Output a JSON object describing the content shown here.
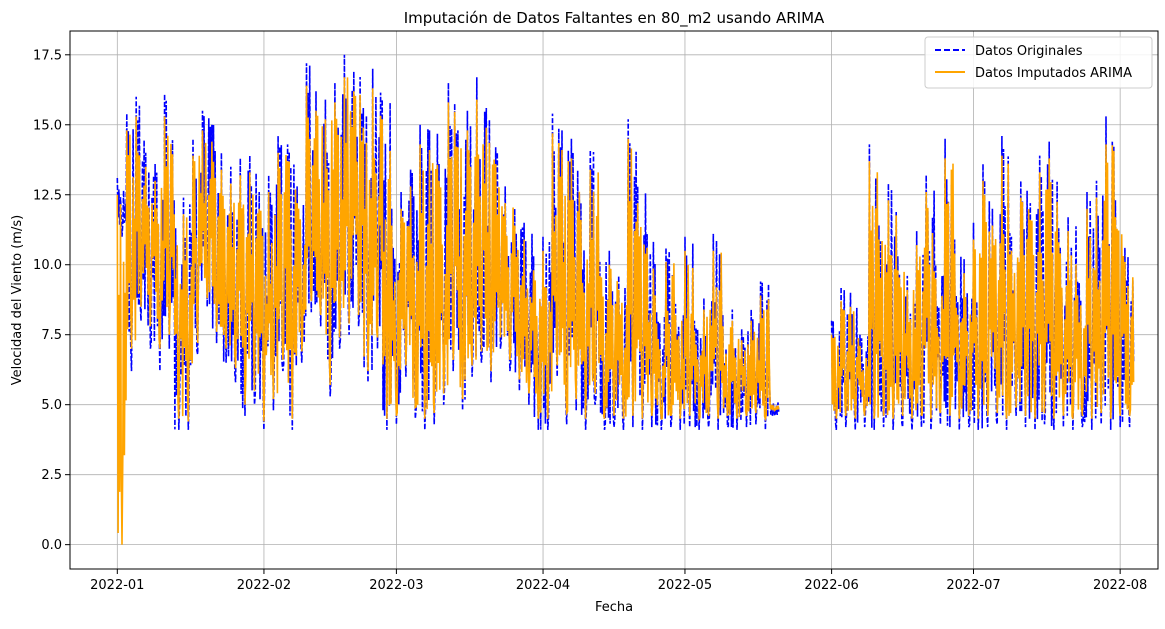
{
  "chart_data": {
    "type": "line",
    "title": "Imputación de Datos Faltantes en 80_m2 usando ARIMA",
    "xlabel": "Fecha",
    "ylabel": "Velocidad del Viento (m/s)",
    "x_range": [
      "2021-12-22",
      "2022-08-09"
    ],
    "xlim": [
      "2021-12-22",
      "2022-08-09"
    ],
    "ylim": [
      -0.87,
      18.35
    ],
    "x_ticks": [
      "2022-01-01",
      "2022-02-01",
      "2022-03-01",
      "2022-04-01",
      "2022-05-01",
      "2022-06-01",
      "2022-07-01",
      "2022-08-01"
    ],
    "x_tick_labels": [
      "2022-01",
      "2022-02",
      "2022-03",
      "2022-04",
      "2022-05",
      "2022-06",
      "2022-07",
      "2022-08"
    ],
    "y_ticks": [
      0.0,
      2.5,
      5.0,
      7.5,
      10.0,
      12.5,
      15.0,
      17.5
    ],
    "y_tick_labels": [
      "0.0",
      "2.5",
      "5.0",
      "7.5",
      "10.0",
      "12.5",
      "15.0",
      "17.5"
    ],
    "grid": true,
    "legend_position": "top-right",
    "series": [
      {
        "name": "Datos Originales",
        "color": "#0000ff",
        "style": "dashed",
        "x": [
          "2022-01-01",
          "2022-01-03",
          "2022-01-05",
          "2022-01-07",
          "2022-01-09",
          "2022-01-11",
          "2022-01-13",
          "2022-01-15",
          "2022-01-17",
          "2022-01-19",
          "2022-01-21",
          "2022-01-23",
          "2022-01-25",
          "2022-01-27",
          "2022-01-29",
          "2022-01-31",
          "2022-02-02",
          "2022-02-04",
          "2022-02-06",
          "2022-02-08",
          "2022-02-10",
          "2022-02-12",
          "2022-02-14",
          "2022-02-16",
          "2022-02-18",
          "2022-02-20",
          "2022-02-22",
          "2022-02-24",
          "2022-02-26",
          "2022-02-28",
          "2022-03-02",
          "2022-03-04",
          "2022-03-06",
          "2022-03-08",
          "2022-03-10",
          "2022-03-12",
          "2022-03-14",
          "2022-03-16",
          "2022-03-18",
          "2022-03-20",
          "2022-03-22",
          "2022-03-24",
          "2022-03-26",
          "2022-03-28",
          "2022-03-30",
          "2022-04-01",
          "2022-04-03",
          "2022-04-05",
          "2022-04-07",
          "2022-04-09",
          "2022-04-11",
          "2022-04-13",
          "2022-04-15",
          "2022-04-17",
          "2022-04-19",
          "2022-04-21",
          "2022-04-23",
          "2022-04-25",
          "2022-04-27",
          "2022-04-29",
          "2022-05-01",
          "2022-05-03",
          "2022-05-05",
          "2022-05-07",
          "2022-05-09",
          "2022-05-11",
          "2022-05-13",
          "2022-05-15",
          "2022-05-17",
          "2022-05-19",
          "2022-06-01",
          "2022-06-03",
          "2022-06-05",
          "2022-06-07",
          "2022-06-09",
          "2022-06-11",
          "2022-06-13",
          "2022-06-15",
          "2022-06-17",
          "2022-06-19",
          "2022-06-21",
          "2022-06-23",
          "2022-06-25",
          "2022-06-27",
          "2022-06-29",
          "2022-07-01",
          "2022-07-03",
          "2022-07-05",
          "2022-07-07",
          "2022-07-09",
          "2022-07-11",
          "2022-07-13",
          "2022-07-15",
          "2022-07-17",
          "2022-07-19",
          "2022-07-21",
          "2022-07-23",
          "2022-07-25",
          "2022-07-27",
          "2022-07-29",
          "2022-07-31",
          "2022-08-02"
        ],
        "low": [
          11.0,
          6.2,
          8.0,
          7.0,
          6.2,
          7.0,
          4.1,
          4.1,
          6.8,
          8.5,
          7.2,
          6.5,
          5.8,
          4.6,
          5.0,
          4.1,
          4.8,
          6.2,
          4.1,
          6.5,
          8.3,
          7.8,
          5.3,
          7.0,
          7.5,
          7.8,
          5.8,
          7.0,
          4.1,
          4.3,
          6.0,
          4.5,
          4.1,
          4.3,
          5.0,
          6.2,
          4.8,
          6.0,
          6.5,
          5.8,
          7.0,
          6.2,
          5.5,
          5.0,
          4.1,
          4.1,
          6.0,
          4.3,
          4.8,
          4.1,
          5.0,
          4.1,
          4.2,
          4.1,
          4.2,
          4.1,
          4.2,
          4.1,
          4.2,
          4.1,
          4.2,
          4.1,
          4.2,
          4.1,
          4.2,
          4.1,
          4.2,
          4.3,
          4.1,
          4.6,
          4.1,
          4.2,
          4.1,
          4.2,
          4.1,
          4.2,
          4.1,
          4.2,
          4.1,
          4.2,
          4.1,
          4.3,
          4.2,
          4.1,
          4.2,
          4.1,
          4.2,
          4.3,
          4.1,
          4.6,
          4.2,
          4.1,
          4.3,
          4.1,
          4.2,
          4.1,
          4.2,
          4.1,
          4.3,
          4.1,
          4.2,
          4.2
        ],
        "high": [
          13.1,
          15.4,
          16.0,
          14.0,
          13.6,
          16.1,
          12.3,
          12.4,
          14.5,
          15.5,
          15.0,
          14.0,
          13.5,
          13.8,
          13.9,
          12.6,
          13.2,
          14.6,
          14.3,
          12.8,
          17.2,
          16.2,
          15.9,
          16.5,
          17.5,
          16.9,
          15.6,
          17.0,
          15.9,
          12.0,
          12.6,
          13.4,
          15.0,
          14.8,
          13.6,
          16.5,
          14.8,
          15.5,
          16.7,
          15.6,
          14.2,
          12.8,
          12.0,
          11.5,
          10.3,
          11.0,
          15.4,
          14.8,
          14.5,
          12.2,
          14.1,
          10.1,
          10.5,
          9.6,
          15.2,
          12.8,
          11.1,
          8.3,
          10.6,
          8.6,
          11.0,
          8.0,
          8.8,
          11.1,
          8.2,
          8.4,
          7.7,
          8.4,
          9.4,
          5.1,
          8.0,
          9.2,
          9.0,
          7.5,
          14.3,
          11.4,
          12.9,
          10.3,
          9.6,
          11.2,
          13.2,
          10.0,
          14.5,
          10.9,
          10.2,
          11.5,
          13.6,
          12.0,
          14.6,
          11.0,
          13.0,
          12.2,
          13.9,
          14.4,
          11.3,
          11.7,
          9.4,
          12.6,
          13.0,
          15.3,
          12.3,
          10.6
        ]
      },
      {
        "name": "Datos Imputados ARIMA",
        "color": "#ffa500",
        "style": "solid",
        "x": [
          "2022-01-01",
          "2022-01-03",
          "2022-01-05",
          "2022-01-07",
          "2022-01-09",
          "2022-01-11",
          "2022-01-13",
          "2022-01-15",
          "2022-01-17",
          "2022-01-19",
          "2022-01-21",
          "2022-01-23",
          "2022-01-25",
          "2022-01-27",
          "2022-01-29",
          "2022-01-31",
          "2022-02-02",
          "2022-02-04",
          "2022-02-06",
          "2022-02-08",
          "2022-02-10",
          "2022-02-12",
          "2022-02-14",
          "2022-02-16",
          "2022-02-18",
          "2022-02-20",
          "2022-02-22",
          "2022-02-24",
          "2022-02-26",
          "2022-02-28",
          "2022-03-02",
          "2022-03-04",
          "2022-03-06",
          "2022-03-08",
          "2022-03-10",
          "2022-03-12",
          "2022-03-14",
          "2022-03-16",
          "2022-03-18",
          "2022-03-20",
          "2022-03-22",
          "2022-03-24",
          "2022-03-26",
          "2022-03-28",
          "2022-03-30",
          "2022-04-01",
          "2022-04-03",
          "2022-04-05",
          "2022-04-07",
          "2022-04-09",
          "2022-04-11",
          "2022-04-13",
          "2022-04-15",
          "2022-04-17",
          "2022-04-19",
          "2022-04-21",
          "2022-04-23",
          "2022-04-25",
          "2022-04-27",
          "2022-04-29",
          "2022-05-01",
          "2022-05-03",
          "2022-05-05",
          "2022-05-07",
          "2022-05-09",
          "2022-05-11",
          "2022-05-13",
          "2022-05-15",
          "2022-05-17",
          "2022-05-19",
          "2022-06-01",
          "2022-06-03",
          "2022-06-05",
          "2022-06-07",
          "2022-06-09",
          "2022-06-11",
          "2022-06-13",
          "2022-06-15",
          "2022-06-17",
          "2022-06-19",
          "2022-06-21",
          "2022-06-23",
          "2022-06-25",
          "2022-06-27",
          "2022-06-29",
          "2022-07-01",
          "2022-07-03",
          "2022-07-05",
          "2022-07-07",
          "2022-07-09",
          "2022-07-11",
          "2022-07-13",
          "2022-07-15",
          "2022-07-17",
          "2022-07-19",
          "2022-07-21",
          "2022-07-23",
          "2022-07-25",
          "2022-07-27",
          "2022-07-29",
          "2022-07-31",
          "2022-08-02"
        ],
        "low": [
          0.0,
          7.0,
          8.5,
          7.8,
          7.0,
          7.5,
          4.5,
          4.4,
          7.2,
          8.8,
          7.6,
          7.0,
          6.3,
          5.0,
          5.5,
          4.4,
          5.2,
          6.6,
          4.5,
          6.9,
          8.7,
          8.2,
          5.7,
          7.4,
          7.9,
          8.2,
          6.2,
          7.4,
          4.5,
          4.6,
          6.4,
          4.9,
          4.5,
          4.7,
          5.4,
          6.6,
          5.2,
          6.4,
          6.9,
          6.2,
          7.4,
          6.6,
          5.9,
          5.4,
          4.5,
          4.5,
          6.4,
          4.7,
          5.2,
          4.5,
          5.4,
          4.5,
          4.6,
          4.5,
          4.6,
          4.5,
          4.6,
          4.5,
          4.6,
          4.5,
          4.6,
          4.5,
          4.6,
          4.5,
          4.6,
          4.5,
          4.6,
          4.7,
          4.5,
          4.8,
          4.5,
          4.6,
          4.5,
          4.6,
          4.5,
          4.6,
          4.5,
          4.6,
          4.5,
          4.6,
          4.5,
          4.7,
          4.6,
          4.5,
          4.6,
          4.5,
          4.6,
          4.7,
          4.5,
          4.9,
          4.6,
          4.5,
          4.7,
          4.5,
          4.6,
          4.5,
          4.6,
          4.5,
          4.7,
          4.5,
          4.6,
          4.6
        ],
        "high": [
          12.5,
          14.8,
          15.3,
          13.5,
          13.0,
          15.3,
          11.8,
          11.8,
          13.9,
          14.8,
          14.4,
          13.4,
          12.9,
          13.2,
          13.3,
          12.0,
          12.6,
          14.0,
          13.7,
          12.2,
          16.4,
          15.5,
          15.2,
          15.8,
          16.7,
          16.2,
          14.9,
          16.3,
          15.2,
          11.4,
          12.0,
          12.8,
          14.3,
          14.1,
          13.0,
          15.8,
          14.2,
          14.8,
          15.9,
          14.9,
          13.6,
          12.2,
          11.4,
          10.9,
          9.8,
          10.5,
          14.7,
          14.1,
          13.8,
          11.6,
          13.4,
          9.6,
          10.0,
          9.1,
          14.5,
          12.2,
          10.6,
          7.9,
          10.1,
          8.2,
          10.5,
          7.6,
          8.4,
          10.5,
          7.8,
          8.0,
          7.3,
          8.0,
          8.9,
          5.0,
          7.5,
          8.7,
          8.5,
          7.1,
          13.7,
          10.9,
          12.3,
          9.8,
          9.1,
          10.7,
          12.6,
          9.5,
          13.8,
          10.4,
          9.7,
          10.9,
          13.0,
          11.4,
          13.9,
          10.5,
          12.4,
          11.6,
          13.3,
          13.8,
          10.8,
          11.2,
          8.9,
          12.0,
          12.4,
          14.3,
          11.7,
          10.1
        ]
      }
    ]
  }
}
